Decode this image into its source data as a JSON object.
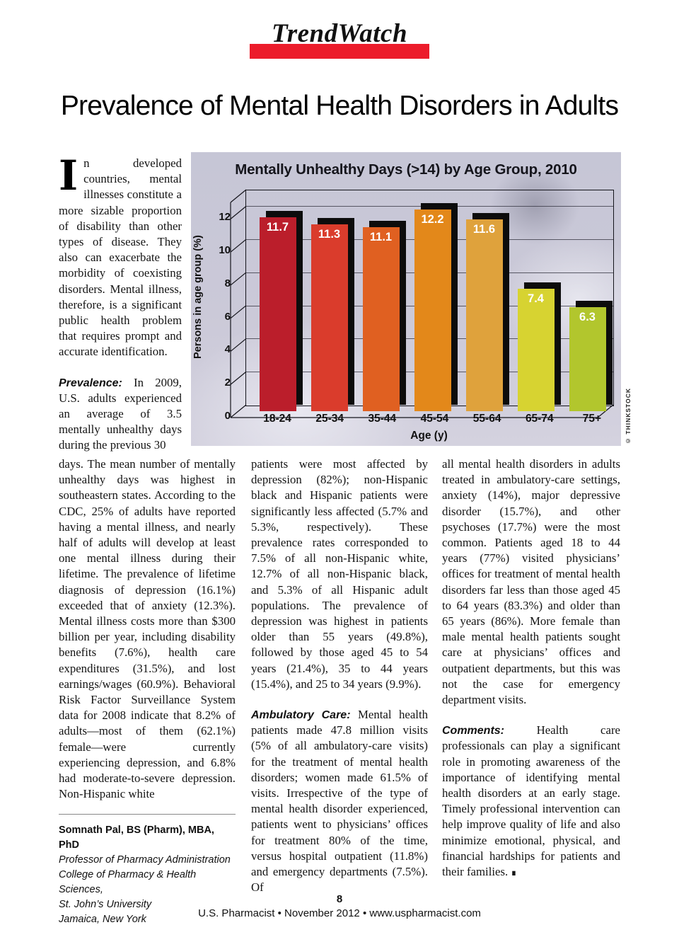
{
  "header": {
    "brand": "TrendWatch",
    "accent_color": "#EC1C2B",
    "title": "Prevalence of Mental Health Disorders in Adults"
  },
  "chart_data": {
    "type": "bar",
    "title": "Mentally Unhealthy Days (>14) by Age Group, 2010",
    "categories": [
      "18-24",
      "25-34",
      "35-44",
      "45-54",
      "55-64",
      "65-74",
      "75+"
    ],
    "values": [
      11.7,
      11.3,
      11.1,
      12.2,
      11.6,
      7.4,
      6.3
    ],
    "bar_colors": [
      "#bb1e2b",
      "#da3c2c",
      "#e06021",
      "#e3881a",
      "#dfa23c",
      "#d7d331",
      "#b2c62d"
    ],
    "xlabel": "Age (y)",
    "ylabel": "Persons in age group (%)",
    "yticks": [
      0,
      2,
      4,
      6,
      8,
      10,
      12
    ],
    "ylim": [
      0,
      13
    ],
    "grid": true,
    "legend": "none",
    "value_label_color": "#ffffff",
    "photo_credit": "© THINKSTOCK"
  },
  "article": {
    "dropcap": "I",
    "intro": "n developed countries, mental illnesses constitute a more sizable proportion of disability than other types of disease. They also can exacerbate the morbidity of coexisting disorders. Mental illness, therefore, is a significant public health problem that requires prompt and accurate identification.",
    "prevalence_label": "Prevalence:",
    "prevalence_text_top": "In 2009, U.S. adults experienced an average of 3.5 mentally unhealthy days during the previous 30",
    "prevalence_text_bottom": "days. The mean number of mentally unhealthy days was highest in southeastern states. According to the CDC, 25% of adults have reported having a mental illness, and nearly half of adults will develop at least one mental illness during their lifetime. The prevalence of lifetime diagnosis of depression (16.1%) exceeded that of anxiety (12.3%). Mental illness costs more than $300 billion per year, including disability benefits (7.6%), health care expenditures (31.5%), and lost earnings/wages (60.9%). Behavioral Risk Factor Surveillance System data for 2008 indicate that 8.2% of adults—most of them (62.1%) female—were currently experiencing depression, and 6.8% had moderate-to-severe depression. Non-Hispanic white",
    "col2_para1": "patients were most affected by depression (82%); non-Hispanic black and Hispanic patients were significantly less affected (5.7% and 5.3%, respectively). These prevalence rates corresponded to 7.5% of all non-Hispanic white, 12.7% of all non-Hispanic black, and 5.3% of all Hispanic adult populations. The prevalence of depression was highest in patients older than 55 years (49.8%), followed by those aged 45 to 54 years (21.4%), 35 to 44 years (15.4%), and 25 to 34 years (9.9%).",
    "ambulatory_label": "Ambulatory Care:",
    "ambulatory_text": "Mental health patients made 47.8 million visits (5% of all ambulatory-care visits) for the treatment of mental health disorders; women made 61.5% of visits. Irrespective of the type of mental health disorder experienced, patients went to physicians’ offices for treatment 80% of the time, versus hospital outpatient (11.8%) and emergency departments (7.5%). Of",
    "col3_para1": "all mental health disorders in adults treated in ambulatory-care settings, anxiety (14%), major depressive disorder (15.7%), and other psychoses (17.7%) were the most common. Patients aged 18 to 44 years (77%) visited physicians’ offices for treatment of mental health disorders far less than those aged 45 to 64 years (83.3%) and older than 65 years (86%). More female than male mental health patients sought care at physicians’ offices and outpatient departments, but this was not the case for emergency department visits.",
    "comments_label": "Comments:",
    "comments_text": "Health care professionals can play a significant role in promoting awareness of the importance of identifying mental health disorders at an early stage. Timely professional intervention can help improve quality of life and also minimize emotional, physical, and financial hardships for patients and their families.",
    "end_mark": "∎",
    "author": {
      "name": "Somnath Pal, BS (Pharm), MBA, PhD",
      "lines": [
        "Professor of Pharmacy Administration",
        "College of Pharmacy & Health Sciences,",
        "St. John’s University",
        "Jamaica, New York"
      ]
    }
  },
  "footer": {
    "page_number": "8",
    "publication_line": "U.S. Pharmacist • November 2012 • www.uspharmacist.com"
  }
}
